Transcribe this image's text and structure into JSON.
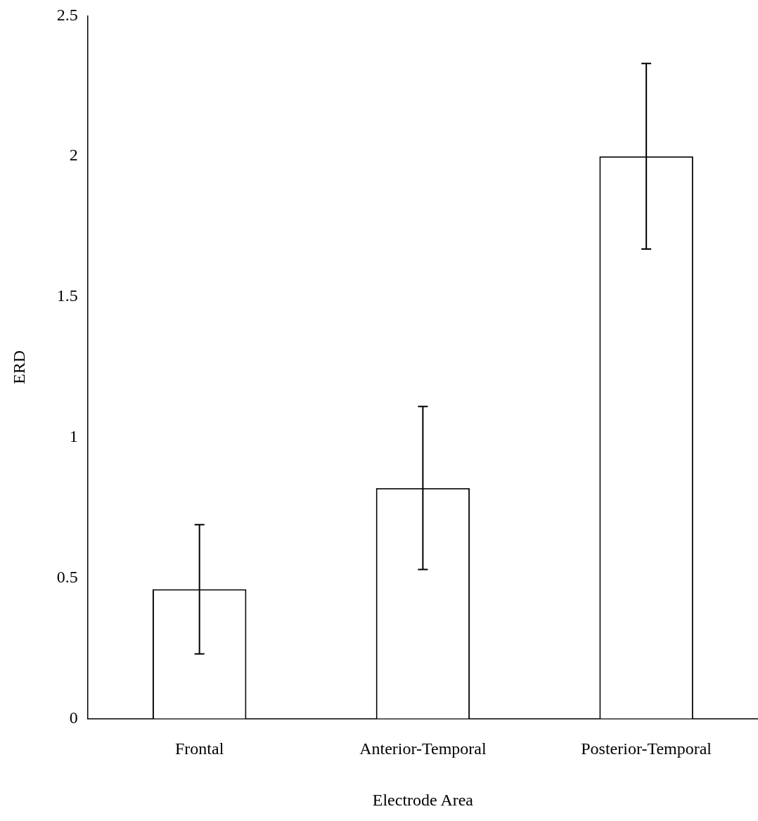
{
  "chart_data": {
    "type": "bar",
    "xlabel": "Electrode Area",
    "ylabel": "ERD",
    "categories": [
      "Frontal",
      "Anterior-Temporal",
      "Posterior-Temporal"
    ],
    "values": [
      0.46,
      0.82,
      2.0
    ],
    "errors": [
      0.23,
      0.29,
      0.33
    ],
    "color": "#ffffff",
    "ylim": [
      0,
      2.5
    ],
    "yticks": [
      0,
      0.5,
      1,
      1.5,
      2,
      2.5
    ],
    "grid": false,
    "legend": false
  }
}
